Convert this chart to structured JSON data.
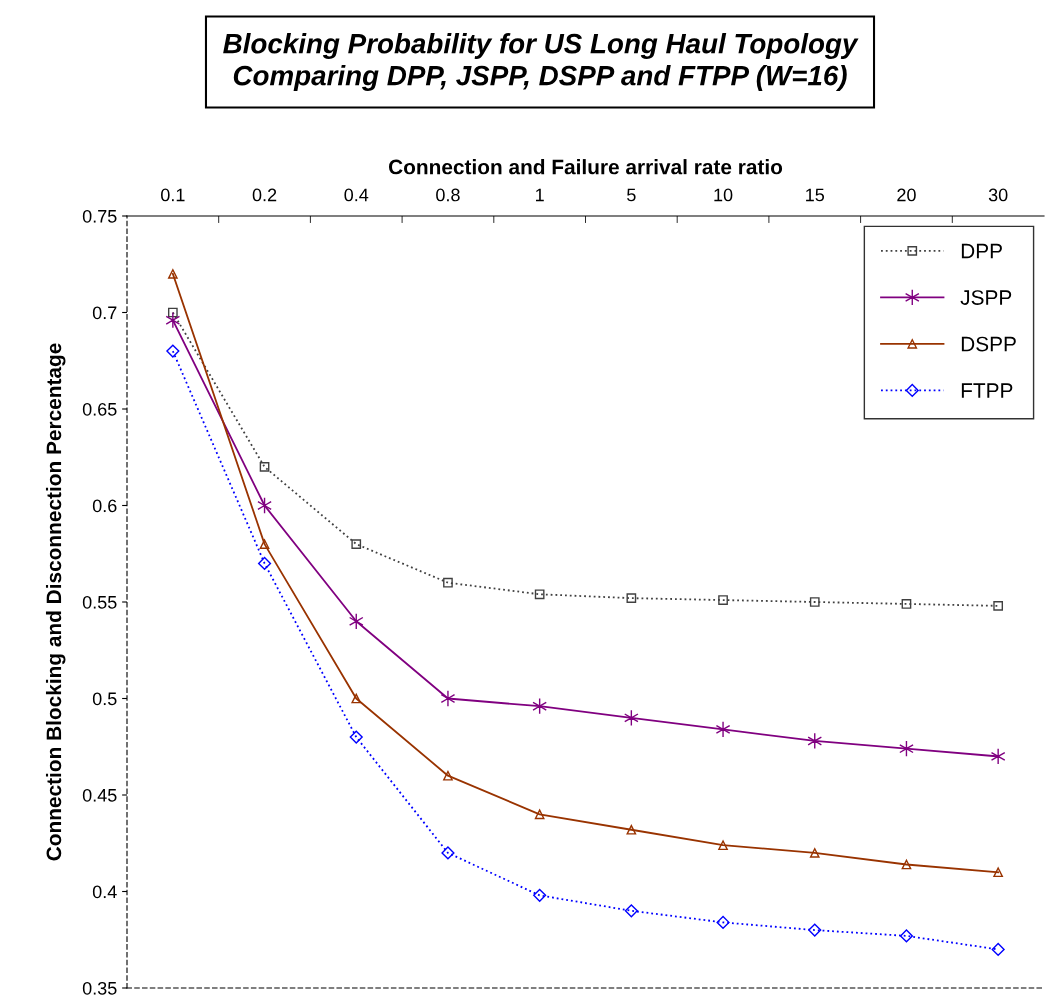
{
  "chart_data": {
    "type": "line",
    "title": "Blocking Probability for US Long Haul Topology\nComparing DPP, JSPP, DSPP and FTPP (W=16)",
    "xlabel": "Connection and Failure arrival rate ratio",
    "ylabel": "Connection Blocking and Disconnection Percentage",
    "categories": [
      "0.1",
      "0.2",
      "0.4",
      "0.8",
      "1",
      "5",
      "10",
      "15",
      "20",
      "30"
    ],
    "series": [
      {
        "name": "DPP",
        "color": "#404040",
        "marker": "square",
        "line_style": "dotted",
        "values": [
          0.7,
          0.62,
          0.58,
          0.56,
          0.554,
          0.552,
          0.551,
          0.55,
          0.549,
          0.548
        ]
      },
      {
        "name": "JSPP",
        "color": "#800080",
        "marker": "cross",
        "line_style": "solid",
        "values": [
          0.696,
          0.6,
          0.54,
          0.5,
          0.496,
          0.49,
          0.484,
          0.478,
          0.474,
          0.47
        ]
      },
      {
        "name": "DSPP",
        "color": "#993300",
        "marker": "triangle",
        "line_style": "solid",
        "values": [
          0.72,
          0.58,
          0.5,
          0.46,
          0.44,
          0.432,
          0.424,
          0.42,
          0.414,
          0.41
        ]
      },
      {
        "name": "FTPP",
        "color": "#0000ff",
        "marker": "diamond",
        "line_style": "dotted",
        "values": [
          0.68,
          0.57,
          0.48,
          0.42,
          0.398,
          0.39,
          0.384,
          0.38,
          0.377,
          0.37
        ]
      }
    ],
    "ylim": [
      0.35,
      0.75
    ],
    "yticks": [
      0.35,
      0.4,
      0.45,
      0.5,
      0.55,
      0.6,
      0.65,
      0.7,
      0.75
    ],
    "grid": false,
    "legend": "top right"
  }
}
